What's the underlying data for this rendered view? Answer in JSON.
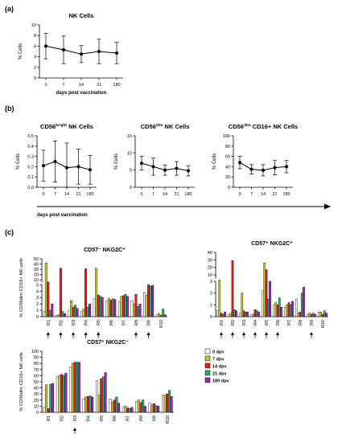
{
  "panels": {
    "a": "(a)",
    "b": "(b)",
    "c": "(c)"
  },
  "days_post_vaccination": "days post vaccination",
  "legend": [
    {
      "label": "0 dpv",
      "color": "#ffffff"
    },
    {
      "label": "7 dpv",
      "color": "#c8c832"
    },
    {
      "label": "14 dpv",
      "color": "#e02020"
    },
    {
      "label": "21 dpv",
      "color": "#20b070"
    },
    {
      "label": "180 dpv",
      "color": "#a020c0"
    }
  ],
  "chart_data": [
    {
      "id": "a",
      "type": "line",
      "title": "NK Cells",
      "xlabel": "days post vaccination",
      "ylabel": "% Cells",
      "x": [
        "0",
        "7",
        "14",
        "21",
        "180"
      ],
      "values": [
        6.0,
        5.3,
        4.5,
        5.0,
        4.7
      ],
      "err": [
        2.4,
        2.6,
        1.6,
        2.3,
        2.0
      ],
      "ylim": [
        0,
        10
      ],
      "yticks": [
        "0",
        "2",
        "4",
        "6",
        "8",
        "10"
      ]
    },
    {
      "id": "b1",
      "type": "line",
      "title": "CD56bright NK Cells",
      "ylabel": "% Cells",
      "x": [
        "0",
        "7",
        "14",
        "21",
        "180"
      ],
      "values": [
        0.21,
        0.25,
        0.19,
        0.2,
        0.17
      ],
      "err": [
        0.15,
        0.2,
        0.24,
        0.17,
        0.14
      ],
      "ylim": [
        0,
        0.5
      ],
      "yticks": [
        "0.0",
        "0.1",
        "0.2",
        "0.3",
        "0.4",
        "0.5"
      ]
    },
    {
      "id": "b2",
      "type": "line",
      "title": "CD56dim NK Cells",
      "ylabel": "% Cells",
      "x": [
        "0",
        "7",
        "14",
        "21",
        "180"
      ],
      "values": [
        7.0,
        6.0,
        5.0,
        5.5,
        4.8
      ],
      "err": [
        2.0,
        2.5,
        1.5,
        2.0,
        1.5
      ],
      "ylim": [
        0,
        15
      ],
      "yticks": [
        "0",
        "5",
        "10",
        "15"
      ]
    },
    {
      "id": "b3",
      "type": "line",
      "title": "CD56dim CD16+ NK Cells",
      "ylabel": "% Cells",
      "x": [
        "0",
        "7",
        "14",
        "21",
        "180"
      ],
      "values": [
        48,
        35,
        33,
        38,
        40
      ],
      "err": [
        12,
        9,
        11,
        14,
        12
      ],
      "ylim": [
        0,
        100
      ],
      "yticks": [
        "0",
        "20",
        "40",
        "60",
        "80",
        "100"
      ]
    },
    {
      "id": "c1",
      "type": "bar",
      "title": "CD57- NKG2C+",
      "ylabel": "% CD56dim CD16+ NK cells",
      "categories": [
        "R1",
        "R2",
        "R3",
        "R4",
        "R5",
        "R6",
        "R7",
        "R8",
        "R9",
        "R10"
      ],
      "series": [
        {
          "name": "0 dpv",
          "values": [
            0.8,
            0.2,
            1.0,
            0.8,
            2.8,
            2.5,
            2.3,
            2.5,
            3.8,
            0.3
          ]
        },
        {
          "name": "7 dpv",
          "values": [
            42,
            0.3,
            2.5,
            1.2,
            32,
            2.9,
            3.2,
            2.0,
            3.4,
            0.5
          ]
        },
        {
          "name": "14 dpv",
          "values": [
            6,
            32,
            1.5,
            31,
            3.4,
            2.6,
            3.3,
            3.5,
            5.0,
            0.2
          ]
        },
        {
          "name": "21 dpv",
          "values": [
            1.0,
            0.8,
            1.8,
            1.5,
            3.2,
            2.8,
            3.5,
            1.6,
            4.8,
            1.2
          ]
        },
        {
          "name": "180 dpv",
          "values": [
            2.0,
            0.5,
            1.3,
            2.0,
            3.0,
            2.7,
            3.2,
            2.0,
            4.9,
            0.3
          ]
        }
      ],
      "arrows": [
        "R1",
        "R2",
        "R3",
        "R4",
        "R5",
        "R8",
        "R9"
      ],
      "lower_ticks": [
        "0",
        "1",
        "2",
        "3",
        "4",
        "5"
      ],
      "upper_ticks": [
        "10",
        "20",
        "30",
        "40",
        "50"
      ]
    },
    {
      "id": "c2",
      "type": "bar",
      "title": "CD57+ NKG2C+",
      "ylabel": "",
      "categories": [
        "R1",
        "R2",
        "R3",
        "R4",
        "R5",
        "R6",
        "R7",
        "R8",
        "R9",
        "R10"
      ],
      "series": [
        {
          "name": "0 dpv",
          "values": [
            0.5,
            0.2,
            0.3,
            0.2,
            2.2,
            1.0,
            0.8,
            1.5,
            0.2,
            0.4
          ]
        },
        {
          "name": "7 dpv",
          "values": [
            3.2,
            0.3,
            2.0,
            0.2,
            26,
            1.2,
            1.0,
            0.3,
            0.3,
            0.4
          ]
        },
        {
          "name": "14 dpv",
          "values": [
            0.3,
            29,
            0.5,
            0.6,
            17,
            1.0,
            1.2,
            0.4,
            0.2,
            0.2
          ]
        },
        {
          "name": "21 dpv",
          "values": [
            0.2,
            0.6,
            0.4,
            0.5,
            1.5,
            1.6,
            1.0,
            2.0,
            0.3,
            0.5
          ]
        },
        {
          "name": "180 dpv",
          "values": [
            0.4,
            0.5,
            0.4,
            0.4,
            3.0,
            0.8,
            1.3,
            2.5,
            0.2,
            0.3
          ]
        }
      ],
      "arrows": [
        "R1",
        "R2",
        "R3",
        "R4",
        "R5",
        "R6",
        "R9"
      ],
      "lower_ticks": [
        "0",
        "1",
        "2",
        "3"
      ],
      "upper_ticks": [
        "10",
        "20",
        "30",
        "40"
      ]
    },
    {
      "id": "c3",
      "type": "bar",
      "title": "CD57+ NKG2C-",
      "ylabel": "% CD56dim CD16+ NK cells",
      "categories": [
        "R1",
        "R2",
        "R3",
        "R4",
        "R5",
        "R6",
        "R7",
        "R8",
        "R9",
        "R10"
      ],
      "series": [
        {
          "name": "0 dpv",
          "values": [
            8,
            58,
            74,
            22,
            52,
            22,
            8,
            18,
            15,
            28
          ]
        },
        {
          "name": "7 dpv",
          "values": [
            45,
            60,
            80,
            25,
            28,
            17,
            10,
            20,
            12,
            28
          ]
        },
        {
          "name": "14 dpv",
          "values": [
            6,
            62,
            82,
            26,
            55,
            20,
            7,
            16,
            14,
            30
          ]
        },
        {
          "name": "21 dpv",
          "values": [
            46,
            60,
            82,
            27,
            58,
            25,
            6,
            20,
            11,
            36
          ]
        },
        {
          "name": "180 dpv",
          "values": [
            47,
            64,
            82,
            25,
            65,
            15,
            8,
            10,
            10,
            26
          ]
        }
      ],
      "arrows": [
        "R3"
      ],
      "yticks": [
        "0",
        "10",
        "20",
        "30",
        "40",
        "50",
        "60",
        "70",
        "80",
        "90",
        "100"
      ],
      "ylim": [
        0,
        100
      ]
    }
  ]
}
